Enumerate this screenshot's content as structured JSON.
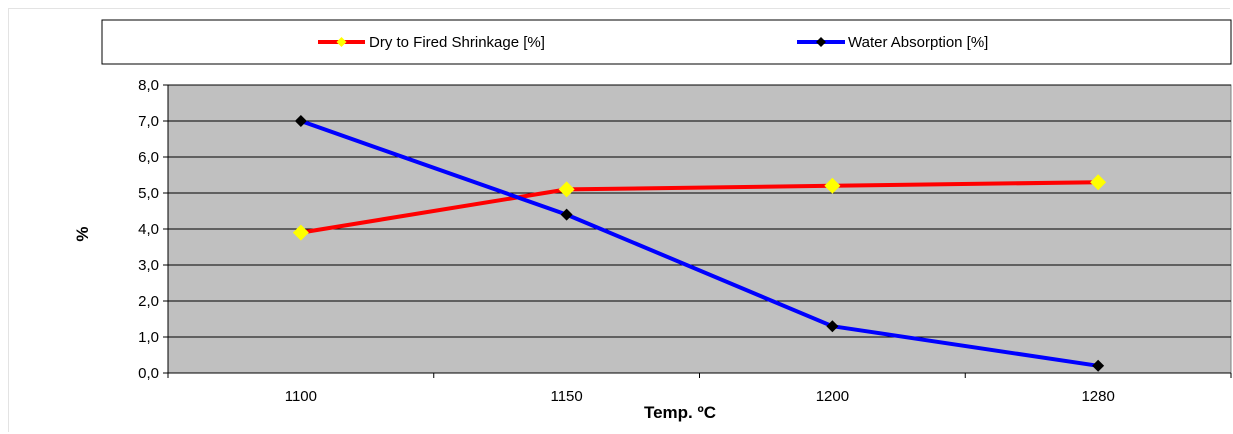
{
  "chart_data": {
    "type": "line",
    "categories": [
      "1100",
      "1150",
      "1200",
      "1280"
    ],
    "series": [
      {
        "name": "Dry to Fired Shrinkage [%]",
        "values": [
          3.9,
          5.1,
          5.2,
          5.3
        ],
        "color": "#ff0000",
        "marker": "diamond",
        "marker_color": "#ffff00"
      },
      {
        "name": "Water Absorption [%]",
        "values": [
          7.0,
          4.4,
          1.3,
          0.2
        ],
        "color": "#0000ff",
        "marker": "diamond",
        "marker_color": "#000000"
      }
    ],
    "xlabel": "Temp. ºC",
    "ylabel": "%",
    "ylim": [
      0,
      8
    ],
    "yticks": [
      "0,0",
      "1,0",
      "2,0",
      "3,0",
      "4,0",
      "5,0",
      "6,0",
      "7,0",
      "8,0"
    ],
    "grid": true,
    "legend_position": "top",
    "plot_background": "#c0c0c0"
  }
}
